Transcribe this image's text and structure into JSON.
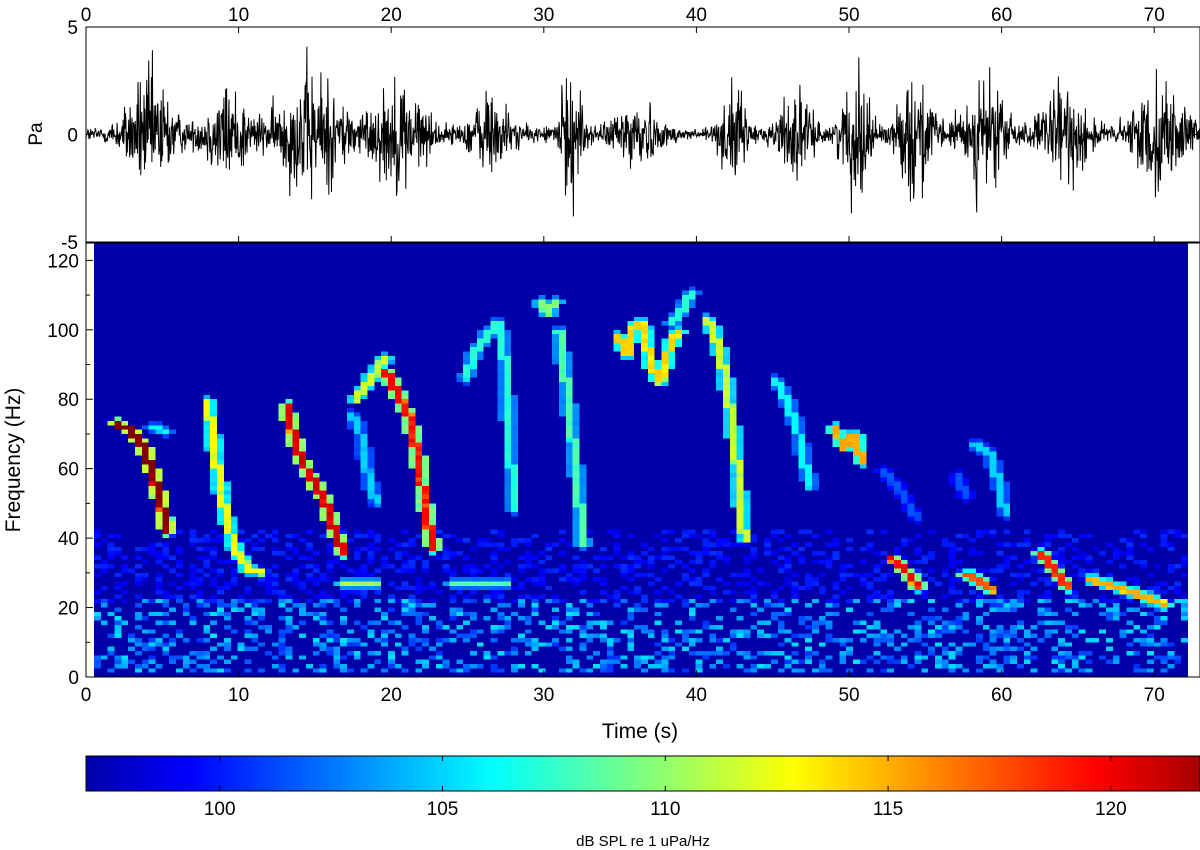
{
  "chart_data": [
    {
      "type": "line",
      "name": "waveform",
      "ylabel": "Pa",
      "xlim": [
        0,
        73
      ],
      "ylim": [
        -5,
        5
      ],
      "x_ticks_top": [
        0,
        10,
        20,
        30,
        40,
        50,
        60,
        70
      ],
      "y_ticks": [
        -5,
        0,
        5
      ],
      "baseline_amplitude": 0.45,
      "bursts": [
        {
          "t": 4.2,
          "w": 1.6,
          "amp": 3.4
        },
        {
          "t": 9.3,
          "w": 1.5,
          "amp": 2.6
        },
        {
          "t": 14.8,
          "w": 2.3,
          "amp": 3.6
        },
        {
          "t": 20.5,
          "w": 1.8,
          "amp": 3.0
        },
        {
          "t": 26.5,
          "w": 1.3,
          "amp": 2.3
        },
        {
          "t": 31.8,
          "w": 0.8,
          "amp": 3.6
        },
        {
          "t": 36.0,
          "w": 1.3,
          "amp": 2.2
        },
        {
          "t": 42.4,
          "w": 0.8,
          "amp": 2.8
        },
        {
          "t": 46.4,
          "w": 1.1,
          "amp": 2.4
        },
        {
          "t": 50.5,
          "w": 1.0,
          "amp": 3.4
        },
        {
          "t": 54.4,
          "w": 1.1,
          "amp": 3.6
        },
        {
          "t": 58.9,
          "w": 1.5,
          "amp": 3.2
        },
        {
          "t": 64.2,
          "w": 1.6,
          "amp": 2.6
        },
        {
          "t": 70.3,
          "w": 1.7,
          "amp": 3.0
        }
      ]
    },
    {
      "type": "heatmap",
      "name": "spectrogram",
      "xlabel": "Time (s)",
      "ylabel": "Frequency (Hz)",
      "xlim": [
        0,
        73
      ],
      "ylim": [
        0,
        125
      ],
      "x_ticks": [
        0,
        10,
        20,
        30,
        40,
        50,
        60,
        70
      ],
      "y_ticks": [
        0,
        20,
        40,
        60,
        80,
        100,
        120
      ],
      "background_dB": 97,
      "calls": [
        {
          "points": [
            [
              1.5,
              73
            ],
            [
              2.5,
              71
            ],
            [
              3.3,
              66
            ],
            [
              4.0,
              58
            ],
            [
              4.6,
              48
            ],
            [
              4.9,
              42
            ]
          ],
          "level": 120
        },
        {
          "points": [
            [
              3.8,
              72
            ],
            [
              4.8,
              71
            ]
          ],
          "level": 105
        },
        {
          "points": [
            [
              7.6,
              80
            ],
            [
              7.9,
              70
            ],
            [
              8.3,
              58
            ],
            [
              8.8,
              46
            ],
            [
              9.5,
              36
            ],
            [
              10.3,
              31
            ],
            [
              11.0,
              30
            ]
          ],
          "level": 111
        },
        {
          "points": [
            [
              12.8,
              78
            ],
            [
              13.3,
              70
            ],
            [
              13.8,
              63
            ],
            [
              14.5,
              57
            ],
            [
              15.3,
              52
            ],
            [
              15.9,
              44
            ],
            [
              16.6,
              36
            ]
          ],
          "level": 118
        },
        {
          "points": [
            [
              16.5,
              27
            ],
            [
              18.8,
              27
            ]
          ],
          "level": 109
        },
        {
          "points": [
            [
              17.2,
              76
            ],
            [
              17.8,
              70
            ],
            [
              18.3,
              58
            ],
            [
              18.8,
              50
            ]
          ],
          "level": 104
        },
        {
          "points": [
            [
              17.5,
              80
            ],
            [
              18.8,
              88
            ],
            [
              19.5,
              92
            ]
          ],
          "level": 110
        },
        {
          "points": [
            [
              19.5,
              88
            ],
            [
              20.0,
              84
            ],
            [
              21.0,
              75
            ],
            [
              21.6,
              64
            ],
            [
              22.0,
              52
            ],
            [
              22.4,
              42
            ],
            [
              22.7,
              37
            ]
          ],
          "level": 117
        },
        {
          "points": [
            [
              23.8,
              27
            ],
            [
              27.5,
              27
            ]
          ],
          "level": 107
        },
        {
          "points": [
            [
              24.8,
              86
            ],
            [
              25.4,
              93
            ],
            [
              26.3,
              99
            ],
            [
              26.9,
              102
            ],
            [
              27.3,
              96
            ],
            [
              27.5,
              85
            ],
            [
              27.7,
              70
            ],
            [
              27.9,
              55
            ],
            [
              28.0,
              48
            ]
          ],
          "level": 106
        },
        {
          "points": [
            [
              29.8,
              108
            ],
            [
              30.3,
              105
            ],
            [
              30.8,
              108
            ]
          ],
          "level": 108
        },
        {
          "points": [
            [
              31.0,
              100
            ],
            [
              31.4,
              88
            ],
            [
              31.8,
              74
            ],
            [
              32.2,
              58
            ],
            [
              32.5,
              44
            ],
            [
              32.6,
              38
            ]
          ],
          "level": 107
        },
        {
          "points": [
            [
              35.0,
              98
            ],
            [
              35.6,
              93
            ],
            [
              36.0,
              101
            ],
            [
              36.6,
              102
            ],
            [
              37.2,
              90
            ],
            [
              37.8,
              85
            ],
            [
              38.4,
              95
            ],
            [
              39.0,
              100
            ]
          ],
          "level": 112
        },
        {
          "points": [
            [
              38.5,
              102
            ],
            [
              39.3,
              106
            ],
            [
              39.9,
              111
            ]
          ],
          "level": 106
        },
        {
          "points": [
            [
              41.0,
              103
            ],
            [
              41.7,
              95
            ],
            [
              42.3,
              82
            ],
            [
              42.8,
              66
            ],
            [
              43.2,
              48
            ],
            [
              43.4,
              40
            ]
          ],
          "level": 110
        },
        {
          "points": [
            [
              45.5,
              86
            ],
            [
              46.2,
              80
            ],
            [
              46.9,
              72
            ],
            [
              47.4,
              62
            ],
            [
              47.8,
              55
            ]
          ],
          "level": 105
        },
        {
          "points": [
            [
              49.3,
              72
            ],
            [
              50.1,
              66
            ],
            [
              50.8,
              70
            ],
            [
              51.2,
              62
            ]
          ],
          "level": 113
        },
        {
          "points": [
            [
              53.3,
              34
            ],
            [
              54.3,
              30
            ],
            [
              55.0,
              26
            ]
          ],
          "level": 117
        },
        {
          "points": [
            [
              58.0,
              30
            ],
            [
              59.0,
              28
            ],
            [
              59.8,
              25
            ]
          ],
          "level": 115
        },
        {
          "points": [
            [
              63.2,
              36
            ],
            [
              64.1,
              31
            ],
            [
              64.9,
              26
            ]
          ],
          "level": 116
        },
        {
          "points": [
            [
              66.5,
              28
            ],
            [
              68.8,
              25
            ],
            [
              71.5,
              21
            ]
          ],
          "level": 113
        },
        {
          "points": [
            [
              58.8,
              67
            ],
            [
              59.8,
              64
            ],
            [
              60.4,
              56
            ],
            [
              60.8,
              47
            ]
          ],
          "level": 104
        },
        {
          "points": [
            [
              52.5,
              60
            ],
            [
              53.8,
              54
            ],
            [
              54.8,
              46
            ]
          ],
          "level": 101
        },
        {
          "points": [
            [
              57.5,
              58
            ],
            [
              58.2,
              52
            ]
          ],
          "level": 101
        }
      ],
      "noise_bands": [
        {
          "fmin": 2,
          "fmax": 22,
          "tmin": 0,
          "tmax": 73,
          "level": 104
        },
        {
          "fmin": 22,
          "fmax": 42,
          "tmin": 0,
          "tmax": 73,
          "level": 100
        }
      ]
    },
    {
      "type": "heatmap",
      "name": "colorbar",
      "xlabel": "dB SPL re 1 uPa/Hz",
      "xlim": [
        97,
        122
      ],
      "x_ticks": [
        100,
        105,
        110,
        115,
        120
      ],
      "colormap": "jet"
    }
  ]
}
